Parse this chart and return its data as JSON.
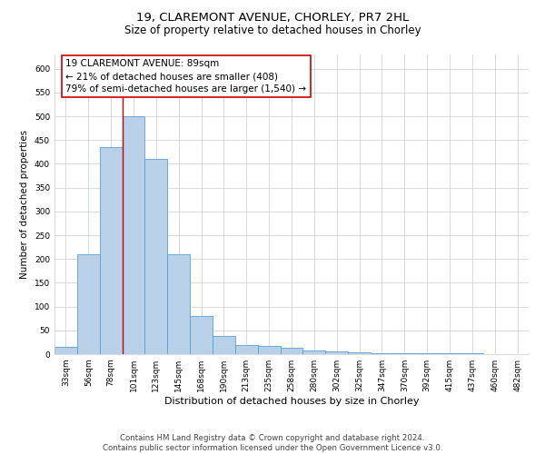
{
  "title_line1": "19, CLAREMONT AVENUE, CHORLEY, PR7 2HL",
  "title_line2": "Size of property relative to detached houses in Chorley",
  "xlabel": "Distribution of detached houses by size in Chorley",
  "ylabel": "Number of detached properties",
  "categories": [
    "33sqm",
    "56sqm",
    "78sqm",
    "101sqm",
    "123sqm",
    "145sqm",
    "168sqm",
    "190sqm",
    "213sqm",
    "235sqm",
    "258sqm",
    "280sqm",
    "302sqm",
    "325sqm",
    "347sqm",
    "370sqm",
    "392sqm",
    "415sqm",
    "437sqm",
    "460sqm",
    "482sqm"
  ],
  "values": [
    15,
    210,
    435,
    500,
    410,
    210,
    80,
    38,
    20,
    17,
    13,
    8,
    5,
    3,
    2,
    2,
    1,
    1,
    1,
    0,
    0
  ],
  "bar_color": "#b8d0e8",
  "bar_edge_color": "#5a9fd4",
  "bar_linewidth": 0.6,
  "vline_color": "#cc0000",
  "annotation_text": "19 CLAREMONT AVENUE: 89sqm\n← 21% of detached houses are smaller (408)\n79% of semi-detached houses are larger (1,540) →",
  "annotation_box_color": "#ffffff",
  "annotation_box_edge_color": "#cc0000",
  "annotation_fontsize": 7.5,
  "ylim": [
    0,
    630
  ],
  "yticks": [
    0,
    50,
    100,
    150,
    200,
    250,
    300,
    350,
    400,
    450,
    500,
    550,
    600
  ],
  "background_color": "#ffffff",
  "grid_color": "#cccccc",
  "footer_text": "Contains HM Land Registry data © Crown copyright and database right 2024.\nContains public sector information licensed under the Open Government Licence v3.0.",
  "title_fontsize": 9.5,
  "subtitle_fontsize": 8.5,
  "xlabel_fontsize": 8,
  "ylabel_fontsize": 7.5,
  "tick_fontsize": 6.5,
  "footer_fontsize": 6.2
}
